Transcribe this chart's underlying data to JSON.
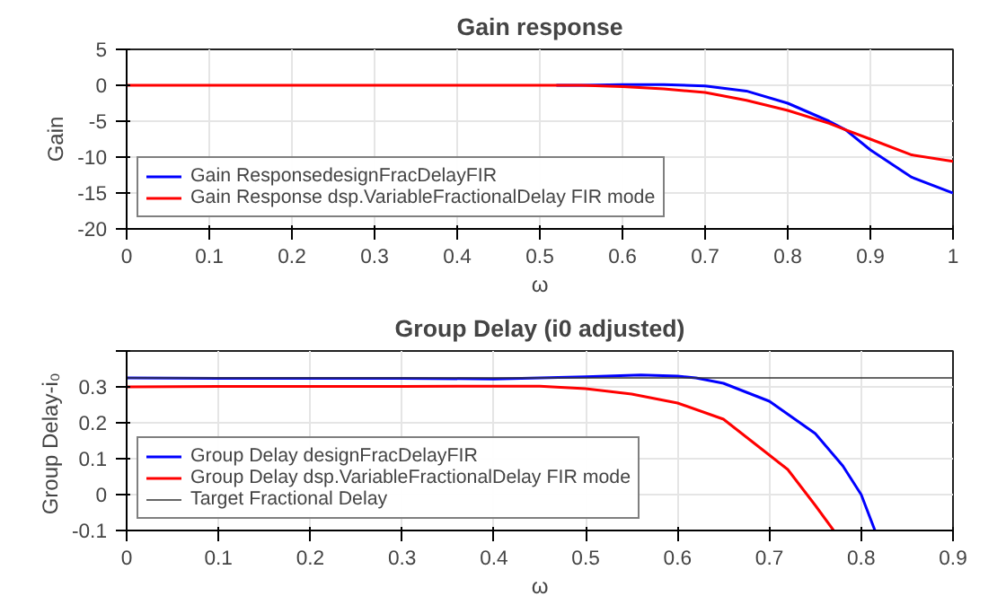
{
  "chart_data": [
    {
      "type": "line",
      "title": "Gain response",
      "xlabel": "ω",
      "ylabel": "Gain",
      "xlim": [
        0,
        1
      ],
      "ylim": [
        -20,
        5
      ],
      "xticks": [
        0,
        0.1,
        0.2,
        0.3,
        0.4,
        0.5,
        0.6,
        0.7,
        0.8,
        0.9,
        1
      ],
      "yticks": [
        -20,
        -15,
        -10,
        -5,
        0,
        5
      ],
      "grid": true,
      "legend": "bottom left",
      "x": [
        0,
        0.1,
        0.2,
        0.3,
        0.4,
        0.5,
        0.55,
        0.6,
        0.65,
        0.7,
        0.75,
        0.8,
        0.85,
        0.87,
        0.9,
        0.95,
        1.0
      ],
      "series": [
        {
          "name": "Gain ResponsedesignFracDelayFIR",
          "color": "#0000ff",
          "x": [
            0.52,
            0.55,
            0.6,
            0.65,
            0.7,
            0.75,
            0.8,
            0.85,
            0.87,
            0.9,
            0.95,
            1.0
          ],
          "values": [
            0,
            0,
            0.1,
            0.1,
            -0.1,
            -0.8,
            -2.5,
            -5,
            -6.2,
            -9,
            -12.8,
            -15
          ]
        },
        {
          "name": "Gain Response dsp.VariableFractionalDelay FIR mode",
          "color": "#ff0000",
          "values": [
            0,
            0,
            0,
            0,
            0,
            0,
            0,
            -0.2,
            -0.5,
            -1,
            -2.1,
            -3.5,
            -5.3,
            -6.2,
            -7.5,
            -9.7,
            -10.6
          ]
        }
      ]
    },
    {
      "type": "line",
      "title": "Group Delay (i0 adjusted)",
      "xlabel": "ω",
      "ylabel": "Group  Delay-i₀",
      "xlim": [
        0,
        0.9
      ],
      "ylim": [
        -0.1,
        0.4
      ],
      "xticks": [
        0,
        0.1,
        0.2,
        0.3,
        0.4,
        0.5,
        0.6,
        0.7,
        0.8,
        0.9
      ],
      "yticks": [
        -0.1,
        0,
        0.1,
        0.2,
        0.3,
        {
          "value": 0.4,
          "label": null
        }
      ],
      "grid": true,
      "legend": "bottom left",
      "series": [
        {
          "name": "Group Delay designFracDelayFIR",
          "color": "#0000ff",
          "x": [
            0,
            0.1,
            0.2,
            0.3,
            0.4,
            0.5,
            0.56,
            0.6,
            0.62,
            0.65,
            0.7,
            0.75,
            0.78,
            0.8,
            0.815
          ],
          "values": [
            0.325,
            0.324,
            0.324,
            0.324,
            0.322,
            0.328,
            0.333,
            0.33,
            0.325,
            0.31,
            0.26,
            0.17,
            0.08,
            0.0,
            -0.1
          ]
        },
        {
          "name": "Group Delay dsp.VariableFractionalDelay FIR mode",
          "color": "#ff0000",
          "x": [
            0,
            0.1,
            0.2,
            0.3,
            0.4,
            0.45,
            0.5,
            0.55,
            0.6,
            0.65,
            0.7,
            0.72,
            0.75,
            0.77
          ],
          "values": [
            0.3,
            0.301,
            0.301,
            0.301,
            0.302,
            0.302,
            0.295,
            0.28,
            0.255,
            0.21,
            0.11,
            0.07,
            -0.03,
            -0.1
          ]
        }
      ],
      "ref_lines": [
        {
          "axis": "y",
          "value": 0.325,
          "label": "Target Fractional Delay",
          "color": "#333333"
        }
      ]
    }
  ]
}
